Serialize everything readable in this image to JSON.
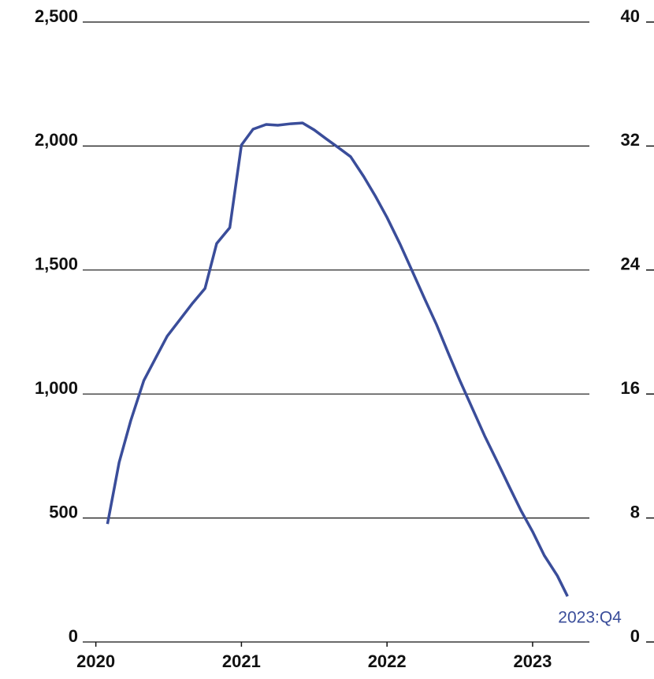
{
  "chart_data": {
    "type": "line",
    "x": [
      2020.08,
      2020.16,
      2020.24,
      2020.33,
      2020.41,
      2020.49,
      2020.58,
      2020.66,
      2020.75,
      2020.83,
      2020.92,
      2021.0,
      2021.08,
      2021.17,
      2021.25,
      2021.34,
      2021.42,
      2021.5,
      2021.58,
      2021.67,
      2021.75,
      2021.84,
      2021.92,
      2022.0,
      2022.09,
      2022.17,
      2022.26,
      2022.34,
      2022.42,
      2022.5,
      2022.59,
      2022.67,
      2022.76,
      2022.84,
      2022.92,
      2023.0,
      2023.08,
      2023.17,
      2023.24
    ],
    "series": [
      {
        "color": "#3a4d9a",
        "values": [
          476,
          724,
          893,
          1055,
          1144,
          1233,
          1302,
          1363,
          1426,
          1607,
          1671,
          2004,
          2068,
          2087,
          2084,
          2090,
          2093,
          2065,
          2030,
          1992,
          1957,
          1877,
          1798,
          1712,
          1604,
          1500,
          1382,
          1280,
          1166,
          1055,
          937,
          832,
          724,
          626,
          530,
          445,
          349,
          267,
          184
        ]
      }
    ],
    "annotation": "2023:Q4",
    "xlim": [
      2019.91,
      2023.39
    ],
    "xticks": [
      2020,
      2021,
      2022,
      2023,
      2024
    ],
    "ylim": [
      0,
      2500
    ],
    "yticks": [
      0,
      {
        "value": 500,
        "label": "500"
      },
      {
        "value": 1000,
        "label": "1,000"
      },
      {
        "value": 1500,
        "label": "1,500"
      },
      {
        "value": 2000,
        "label": "2,000"
      },
      {
        "value": 2500,
        "label": "2,500"
      }
    ],
    "y2lim": [
      0,
      40
    ],
    "y2ticks": [
      0,
      8,
      16,
      24,
      32,
      40
    ],
    "grid": true
  }
}
